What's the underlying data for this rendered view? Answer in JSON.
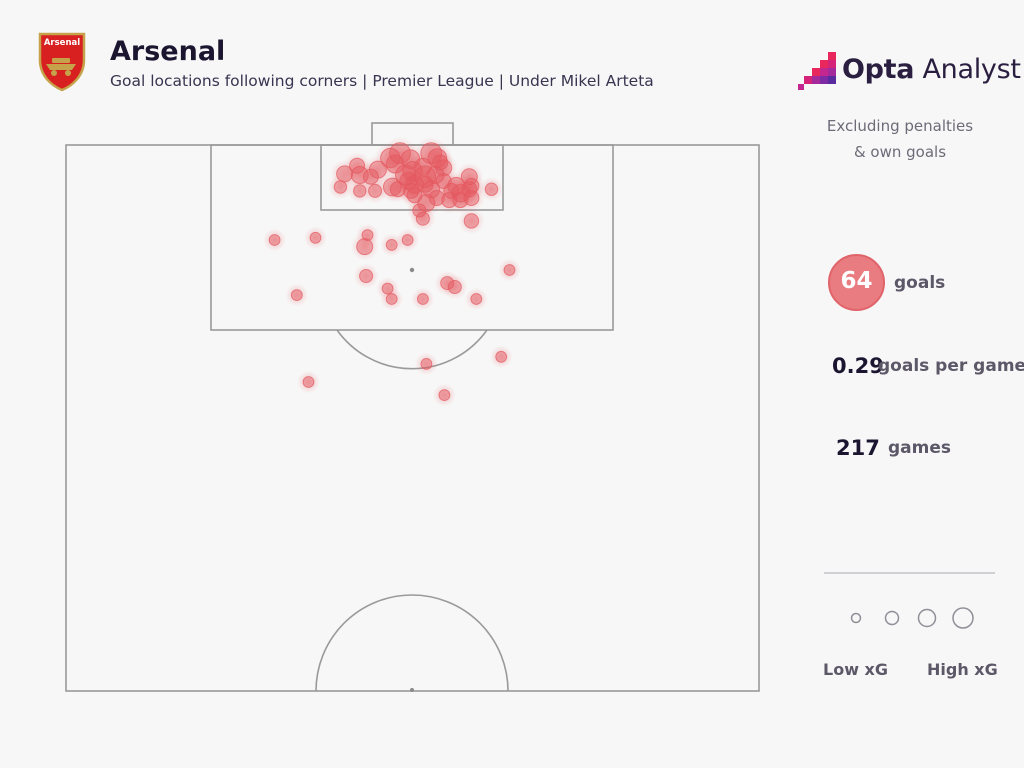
{
  "header": {
    "title": "Arsenal",
    "subtitle": "Goal locations following corners | Premier League | Under Mikel Arteta",
    "crest_text": "Arsenal"
  },
  "brand": {
    "name_bold": "Opta",
    "name_rest": " Analyst"
  },
  "notes": {
    "line1": "Excluding penalties",
    "line2": "& own goals"
  },
  "stats": {
    "goals_value": "64",
    "goals_label": "goals",
    "per_game_value": "0.29",
    "per_game_label": "goals per game",
    "games_value": "217",
    "games_label": "games"
  },
  "legend": {
    "low_label": "Low xG",
    "high_label": "High xG"
  },
  "colors": {
    "goal_marker": "#e4585f",
    "pitch_line": "#9a9a9a",
    "title": "#1b1530",
    "badge": "#e87c80"
  },
  "chart_data": {
    "type": "scatter",
    "pitch": "half-pitch goal locations",
    "x_range": [
      0,
      100
    ],
    "y_range": [
      0,
      100
    ],
    "x_description": "left to right across the pitch width",
    "y_description": "distance from the goal line, as percent of half-pitch length",
    "points": [
      {
        "x": 48.2,
        "y": 1.5,
        "xg": 0.55
      },
      {
        "x": 52.7,
        "y": 1.5,
        "xg": 0.55
      },
      {
        "x": 46.8,
        "y": 2.4,
        "xg": 0.45
      },
      {
        "x": 49.7,
        "y": 2.6,
        "xg": 0.4
      },
      {
        "x": 53.6,
        "y": 2.4,
        "xg": 0.4
      },
      {
        "x": 42.0,
        "y": 3.8,
        "xg": 0.2
      },
      {
        "x": 45.0,
        "y": 4.5,
        "xg": 0.3
      },
      {
        "x": 47.5,
        "y": 3.5,
        "xg": 0.35
      },
      {
        "x": 50.0,
        "y": 4.8,
        "xg": 0.45
      },
      {
        "x": 51.5,
        "y": 4.0,
        "xg": 0.3
      },
      {
        "x": 54.5,
        "y": 4.2,
        "xg": 0.25
      },
      {
        "x": 40.2,
        "y": 5.3,
        "xg": 0.25
      },
      {
        "x": 42.4,
        "y": 5.5,
        "xg": 0.3
      },
      {
        "x": 44.0,
        "y": 5.8,
        "xg": 0.2
      },
      {
        "x": 49.0,
        "y": 5.5,
        "xg": 0.5
      },
      {
        "x": 51.8,
        "y": 5.8,
        "xg": 0.6
      },
      {
        "x": 53.3,
        "y": 5.5,
        "xg": 0.3
      },
      {
        "x": 58.2,
        "y": 5.8,
        "xg": 0.25
      },
      {
        "x": 49.4,
        "y": 6.6,
        "xg": 0.3
      },
      {
        "x": 50.3,
        "y": 7.2,
        "xg": 0.35
      },
      {
        "x": 51.8,
        "y": 7.2,
        "xg": 0.25
      },
      {
        "x": 54.5,
        "y": 6.6,
        "xg": 0.2
      },
      {
        "x": 56.3,
        "y": 7.5,
        "xg": 0.3
      },
      {
        "x": 58.5,
        "y": 7.5,
        "xg": 0.2
      },
      {
        "x": 61.4,
        "y": 8.1,
        "xg": 0.1
      },
      {
        "x": 39.6,
        "y": 7.7,
        "xg": 0.1
      },
      {
        "x": 42.4,
        "y": 8.4,
        "xg": 0.1
      },
      {
        "x": 44.6,
        "y": 8.4,
        "xg": 0.12
      },
      {
        "x": 47.1,
        "y": 7.7,
        "xg": 0.35
      },
      {
        "x": 47.9,
        "y": 8.1,
        "xg": 0.2
      },
      {
        "x": 49.8,
        "y": 8.4,
        "xg": 0.2
      },
      {
        "x": 52.7,
        "y": 8.1,
        "xg": 0.3
      },
      {
        "x": 55.6,
        "y": 8.4,
        "xg": 0.2
      },
      {
        "x": 57.0,
        "y": 8.8,
        "xg": 0.35
      },
      {
        "x": 58.2,
        "y": 8.1,
        "xg": 0.2
      },
      {
        "x": 50.3,
        "y": 9.2,
        "xg": 0.2
      },
      {
        "x": 52.0,
        "y": 10.6,
        "xg": 0.3
      },
      {
        "x": 53.5,
        "y": 9.7,
        "xg": 0.2
      },
      {
        "x": 55.3,
        "y": 10.1,
        "xg": 0.2
      },
      {
        "x": 56.9,
        "y": 10.1,
        "xg": 0.2
      },
      {
        "x": 58.5,
        "y": 9.7,
        "xg": 0.2
      },
      {
        "x": 51.0,
        "y": 12.0,
        "xg": 0.12
      },
      {
        "x": 51.5,
        "y": 13.5,
        "xg": 0.12
      },
      {
        "x": 58.5,
        "y": 13.9,
        "xg": 0.18
      },
      {
        "x": 30.1,
        "y": 17.4,
        "xg": 0.06
      },
      {
        "x": 36.0,
        "y": 17.0,
        "xg": 0.06
      },
      {
        "x": 43.1,
        "y": 18.6,
        "xg": 0.25
      },
      {
        "x": 43.5,
        "y": 16.5,
        "xg": 0.06
      },
      {
        "x": 47.0,
        "y": 18.3,
        "xg": 0.06
      },
      {
        "x": 49.3,
        "y": 17.4,
        "xg": 0.06
      },
      {
        "x": 64.0,
        "y": 22.9,
        "xg": 0.06
      },
      {
        "x": 43.3,
        "y": 24.0,
        "xg": 0.12
      },
      {
        "x": 46.4,
        "y": 26.3,
        "xg": 0.06
      },
      {
        "x": 55.0,
        "y": 25.3,
        "xg": 0.12
      },
      {
        "x": 56.1,
        "y": 26.0,
        "xg": 0.12
      },
      {
        "x": 33.3,
        "y": 27.5,
        "xg": 0.06
      },
      {
        "x": 47.0,
        "y": 28.2,
        "xg": 0.06
      },
      {
        "x": 51.5,
        "y": 28.2,
        "xg": 0.06
      },
      {
        "x": 59.2,
        "y": 28.2,
        "xg": 0.06
      },
      {
        "x": 52.0,
        "y": 40.1,
        "xg": 0.06
      },
      {
        "x": 62.8,
        "y": 38.8,
        "xg": 0.06
      },
      {
        "x": 35.0,
        "y": 43.4,
        "xg": 0.06
      },
      {
        "x": 54.6,
        "y": 45.8,
        "xg": 0.06
      },
      {
        "x": 54.0,
        "y": 3.2,
        "xg": 0.2
      }
    ]
  }
}
